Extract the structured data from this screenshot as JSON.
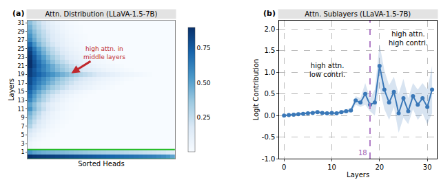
{
  "chart_data": [
    {
      "type": "heatmap",
      "panel": "(a)",
      "title": "Attn. Distribution (LLaVA-1.5-7B)",
      "x_label": "Sorted Heads",
      "y_label": "Layers",
      "tick_labels": "y",
      "y": [
        0,
        1,
        2,
        3,
        4,
        5,
        6,
        7,
        8,
        9,
        10,
        11,
        12,
        13,
        14,
        15,
        16,
        17,
        18,
        19,
        20,
        21,
        22,
        23,
        24,
        25,
        26,
        27,
        28,
        29,
        30,
        31
      ],
      "ylim": [
        -0.5,
        31.5
      ],
      "yticks": [
        1,
        3,
        5,
        7,
        9,
        11,
        13,
        15,
        17,
        19,
        21,
        23,
        25,
        27,
        29,
        31
      ],
      "colorbar": {
        "range": [
          0,
          0.9
        ],
        "ticks": [
          0.25,
          {
            "value": 0.5,
            "label": "0.50"
          },
          0.75
        ]
      },
      "annotations": [
        "high attn. in\nmiddle layers"
      ],
      "cells": [
        [
          0.9,
          0.88,
          0.87,
          0.86,
          0.85,
          0.84,
          0.83,
          0.82,
          0.81,
          0.8,
          0.79,
          0.78,
          0.77,
          0.76,
          0.75,
          0.74,
          0.73,
          0.72,
          0.71,
          0.7,
          0.69,
          0.68,
          0.67,
          0.66,
          0.65,
          0.64,
          0.63,
          0.62,
          0.6,
          0.58,
          0.55,
          0.5
        ],
        [
          0.55,
          0.5,
          0.48,
          0.46,
          0.45,
          0.44,
          0.43,
          0.42,
          0.41,
          0.4,
          0.39,
          0.38,
          0.37,
          0.36,
          0.35,
          0.34,
          0.33,
          0.32,
          0.31,
          0.3,
          0.29,
          0.28,
          0.27,
          0.26,
          0.25,
          0.24,
          0.23,
          0.22,
          0.21,
          0.2,
          0.18,
          0.15
        ],
        [
          0.05,
          0.03,
          0.02,
          0.01,
          0.01,
          0,
          0,
          0,
          0,
          0,
          0,
          0,
          0,
          0,
          0,
          0,
          0,
          0,
          0,
          0,
          0,
          0,
          0,
          0,
          0,
          0,
          0,
          0,
          0,
          0,
          0,
          0
        ],
        [
          0.06,
          0.03,
          0.02,
          0.01,
          0.01,
          0,
          0,
          0,
          0,
          0,
          0,
          0,
          0,
          0,
          0,
          0,
          0,
          0,
          0,
          0,
          0,
          0,
          0,
          0,
          0,
          0,
          0,
          0,
          0,
          0,
          0,
          0
        ],
        [
          0.1,
          0.06,
          0.04,
          0.02,
          0.01,
          0,
          0,
          0,
          0,
          0,
          0,
          0,
          0,
          0,
          0,
          0,
          0,
          0,
          0,
          0,
          0,
          0,
          0,
          0,
          0,
          0,
          0,
          0,
          0,
          0,
          0,
          0
        ],
        [
          0.15,
          0.1,
          0.06,
          0.04,
          0.02,
          0.01,
          0,
          0,
          0,
          0,
          0,
          0,
          0,
          0,
          0,
          0,
          0,
          0,
          0,
          0,
          0,
          0,
          0,
          0,
          0,
          0,
          0,
          0,
          0,
          0,
          0,
          0
        ],
        [
          0.2,
          0.15,
          0.1,
          0.06,
          0.04,
          0.02,
          0.01,
          0,
          0,
          0,
          0,
          0,
          0,
          0,
          0,
          0,
          0,
          0,
          0,
          0,
          0,
          0,
          0,
          0,
          0,
          0,
          0,
          0,
          0,
          0,
          0,
          0
        ],
        [
          0.3,
          0.2,
          0.14,
          0.1,
          0.06,
          0.04,
          0.02,
          0.01,
          0,
          0,
          0,
          0,
          0,
          0,
          0,
          0,
          0,
          0,
          0,
          0,
          0,
          0,
          0,
          0,
          0,
          0,
          0,
          0,
          0,
          0,
          0,
          0
        ],
        [
          0.35,
          0.25,
          0.18,
          0.12,
          0.08,
          0.05,
          0.03,
          0.02,
          0.01,
          0,
          0,
          0,
          0,
          0,
          0,
          0,
          0,
          0,
          0,
          0,
          0,
          0,
          0,
          0,
          0,
          0,
          0,
          0,
          0,
          0,
          0,
          0
        ],
        [
          0.4,
          0.3,
          0.22,
          0.15,
          0.1,
          0.07,
          0.05,
          0.03,
          0.02,
          0.01,
          0,
          0,
          0,
          0,
          0,
          0,
          0,
          0,
          0,
          0,
          0,
          0,
          0,
          0,
          0,
          0,
          0,
          0,
          0,
          0,
          0,
          0
        ],
        [
          0.45,
          0.35,
          0.26,
          0.18,
          0.12,
          0.08,
          0.05,
          0.03,
          0.02,
          0.01,
          0,
          0,
          0,
          0,
          0,
          0,
          0,
          0,
          0,
          0,
          0,
          0,
          0,
          0,
          0,
          0,
          0,
          0,
          0,
          0,
          0,
          0
        ],
        [
          0.55,
          0.42,
          0.32,
          0.24,
          0.17,
          0.12,
          0.08,
          0.05,
          0.03,
          0.02,
          0.01,
          0,
          0,
          0,
          0,
          0,
          0,
          0,
          0,
          0,
          0,
          0,
          0,
          0,
          0,
          0,
          0,
          0,
          0,
          0,
          0,
          0
        ],
        [
          0.5,
          0.4,
          0.3,
          0.22,
          0.16,
          0.11,
          0.08,
          0.05,
          0.03,
          0.02,
          0.01,
          0,
          0,
          0,
          0,
          0,
          0,
          0,
          0,
          0,
          0,
          0,
          0,
          0,
          0,
          0,
          0,
          0,
          0,
          0,
          0,
          0
        ],
        [
          0.6,
          0.48,
          0.38,
          0.3,
          0.23,
          0.17,
          0.12,
          0.08,
          0.05,
          0.03,
          0.02,
          0.01,
          0,
          0,
          0,
          0,
          0,
          0,
          0,
          0,
          0,
          0,
          0,
          0,
          0,
          0,
          0,
          0,
          0,
          0,
          0,
          0
        ],
        [
          0.65,
          0.52,
          0.42,
          0.33,
          0.26,
          0.2,
          0.15,
          0.11,
          0.08,
          0.05,
          0.03,
          0.02,
          0.01,
          0,
          0,
          0,
          0,
          0,
          0,
          0,
          0,
          0,
          0,
          0,
          0,
          0,
          0,
          0,
          0,
          0,
          0,
          0
        ],
        [
          0.7,
          0.58,
          0.48,
          0.4,
          0.33,
          0.27,
          0.22,
          0.17,
          0.13,
          0.1,
          0.07,
          0.05,
          0.03,
          0.02,
          0.01,
          0,
          0,
          0,
          0,
          0,
          0,
          0,
          0,
          0,
          0,
          0,
          0,
          0,
          0,
          0,
          0,
          0
        ],
        [
          0.75,
          0.65,
          0.56,
          0.48,
          0.41,
          0.35,
          0.3,
          0.25,
          0.21,
          0.17,
          0.14,
          0.11,
          0.09,
          0.07,
          0.05,
          0.04,
          0.03,
          0.02,
          0.01,
          0,
          0,
          0,
          0,
          0,
          0,
          0,
          0,
          0,
          0,
          0,
          0,
          0
        ],
        [
          0.8,
          0.7,
          0.62,
          0.55,
          0.48,
          0.42,
          0.36,
          0.31,
          0.26,
          0.22,
          0.18,
          0.15,
          0.12,
          0.1,
          0.08,
          0.06,
          0.05,
          0.04,
          0.03,
          0.02,
          0.01,
          0,
          0,
          0,
          0,
          0,
          0,
          0,
          0,
          0,
          0,
          0
        ],
        [
          0.8,
          0.72,
          0.65,
          0.58,
          0.52,
          0.46,
          0.4,
          0.35,
          0.3,
          0.26,
          0.22,
          0.19,
          0.16,
          0.13,
          0.11,
          0.09,
          0.07,
          0.06,
          0.05,
          0.04,
          0.03,
          0.02,
          0.01,
          0,
          0,
          0,
          0,
          0,
          0,
          0,
          0,
          0
        ],
        [
          0.85,
          0.78,
          0.72,
          0.66,
          0.6,
          0.55,
          0.5,
          0.45,
          0.41,
          0.37,
          0.33,
          0.29,
          0.26,
          0.23,
          0.2,
          0.17,
          0.15,
          0.13,
          0.11,
          0.09,
          0.07,
          0.06,
          0.05,
          0.04,
          0.03,
          0.02,
          0.01,
          0,
          0,
          0,
          0,
          0
        ],
        [
          0.85,
          0.76,
          0.68,
          0.61,
          0.54,
          0.48,
          0.42,
          0.37,
          0.32,
          0.28,
          0.24,
          0.2,
          0.17,
          0.14,
          0.12,
          0.1,
          0.08,
          0.06,
          0.05,
          0.04,
          0.03,
          0.02,
          0.01,
          0,
          0,
          0,
          0,
          0,
          0,
          0,
          0,
          0
        ],
        [
          0.9,
          0.8,
          0.7,
          0.62,
          0.54,
          0.47,
          0.4,
          0.34,
          0.29,
          0.24,
          0.2,
          0.16,
          0.13,
          0.1,
          0.08,
          0.06,
          0.05,
          0.04,
          0.03,
          0.02,
          0.01,
          0,
          0,
          0,
          0,
          0,
          0,
          0,
          0,
          0,
          0,
          0
        ],
        [
          0.9,
          0.78,
          0.67,
          0.57,
          0.48,
          0.4,
          0.33,
          0.27,
          0.22,
          0.18,
          0.14,
          0.11,
          0.08,
          0.06,
          0.05,
          0.04,
          0.03,
          0.02,
          0.01,
          0,
          0,
          0,
          0,
          0,
          0,
          0,
          0,
          0,
          0,
          0,
          0,
          0
        ],
        [
          0.88,
          0.75,
          0.63,
          0.52,
          0.43,
          0.35,
          0.28,
          0.22,
          0.17,
          0.13,
          0.1,
          0.08,
          0.06,
          0.04,
          0.03,
          0.02,
          0.01,
          0,
          0,
          0,
          0,
          0,
          0,
          0,
          0,
          0,
          0,
          0,
          0,
          0,
          0,
          0
        ],
        [
          0.85,
          0.7,
          0.57,
          0.46,
          0.37,
          0.29,
          0.23,
          0.18,
          0.14,
          0.1,
          0.08,
          0.06,
          0.04,
          0.03,
          0.02,
          0.01,
          0,
          0,
          0,
          0,
          0,
          0,
          0,
          0,
          0,
          0,
          0,
          0,
          0,
          0,
          0,
          0
        ],
        [
          0.8,
          0.65,
          0.52,
          0.42,
          0.33,
          0.26,
          0.2,
          0.15,
          0.11,
          0.08,
          0.06,
          0.04,
          0.03,
          0.02,
          0.01,
          0,
          0,
          0,
          0,
          0,
          0,
          0,
          0,
          0,
          0,
          0,
          0,
          0,
          0,
          0,
          0,
          0
        ],
        [
          0.7,
          0.55,
          0.43,
          0.34,
          0.26,
          0.2,
          0.15,
          0.11,
          0.08,
          0.06,
          0.04,
          0.03,
          0.02,
          0.01,
          0,
          0,
          0,
          0,
          0,
          0,
          0,
          0,
          0,
          0,
          0,
          0,
          0,
          0,
          0,
          0,
          0,
          0
        ],
        [
          0.6,
          0.48,
          0.38,
          0.3,
          0.23,
          0.17,
          0.13,
          0.1,
          0.07,
          0.05,
          0.03,
          0.02,
          0.01,
          0,
          0,
          0,
          0,
          0,
          0,
          0,
          0,
          0,
          0,
          0,
          0,
          0,
          0,
          0,
          0,
          0,
          0,
          0
        ],
        [
          0.55,
          0.44,
          0.35,
          0.27,
          0.21,
          0.16,
          0.12,
          0.09,
          0.06,
          0.04,
          0.03,
          0.02,
          0.01,
          0,
          0,
          0,
          0,
          0,
          0,
          0,
          0,
          0,
          0,
          0,
          0,
          0,
          0,
          0,
          0,
          0,
          0,
          0
        ],
        [
          0.5,
          0.4,
          0.32,
          0.25,
          0.19,
          0.14,
          0.1,
          0.07,
          0.05,
          0.03,
          0.02,
          0.01,
          0,
          0,
          0,
          0,
          0,
          0,
          0,
          0,
          0,
          0,
          0,
          0,
          0,
          0,
          0,
          0,
          0,
          0,
          0,
          0
        ],
        [
          0.45,
          0.36,
          0.28,
          0.21,
          0.16,
          0.12,
          0.09,
          0.06,
          0.04,
          0.03,
          0.02,
          0.01,
          0,
          0,
          0,
          0,
          0,
          0,
          0,
          0,
          0,
          0,
          0,
          0,
          0,
          0,
          0,
          0,
          0,
          0,
          0,
          0
        ],
        [
          0.4,
          0.32,
          0.25,
          0.19,
          0.14,
          0.1,
          0.07,
          0.05,
          0.03,
          0.02,
          0.01,
          0,
          0,
          0,
          0,
          0,
          0,
          0,
          0,
          0,
          0,
          0,
          0,
          0,
          0,
          0,
          0,
          0,
          0,
          0,
          0,
          0
        ]
      ]
    },
    {
      "type": "line",
      "panel": "(b)",
      "title": "Attn. Sublayers (LLaVA-1.5-7B)",
      "x_label": "Layers",
      "y_label": "Logit Contribution",
      "x": [
        0,
        1,
        2,
        3,
        4,
        5,
        6,
        7,
        8,
        9,
        10,
        11,
        12,
        13,
        14,
        15,
        16,
        17,
        18,
        19,
        20,
        21,
        22,
        23,
        24,
        25,
        26,
        27,
        28,
        29,
        30,
        31
      ],
      "values": [
        0.0,
        0.01,
        0.02,
        0.03,
        0.04,
        0.05,
        0.06,
        0.08,
        0.06,
        0.05,
        0.06,
        0.05,
        0.08,
        0.1,
        0.12,
        0.35,
        0.3,
        0.5,
        0.25,
        0.3,
        1.15,
        0.6,
        0.3,
        0.55,
        0.05,
        0.4,
        0.1,
        0.45,
        0.25,
        0.4,
        0.2,
        0.6
      ],
      "error": [
        0.02,
        0.02,
        0.02,
        0.02,
        0.03,
        0.03,
        0.03,
        0.03,
        0.03,
        0.03,
        0.03,
        0.03,
        0.04,
        0.05,
        0.05,
        0.1,
        0.1,
        0.25,
        0.15,
        0.3,
        0.5,
        0.45,
        0.4,
        0.35,
        0.45,
        0.45,
        0.3,
        0.3,
        0.35,
        0.35,
        0.4,
        0.55
      ],
      "color": "#3a78b8",
      "marker": "circle",
      "line_style": "solid",
      "xlim": [
        -1,
        32
      ],
      "ylim": [
        -1,
        2.2
      ],
      "xticks": [
        0,
        10,
        20,
        30
      ],
      "yticks": [
        {
          "value": -1,
          "label": "-1.0"
        },
        {
          "value": -0.5,
          "label": "-0.5"
        },
        {
          "value": 0,
          "label": "0.0"
        },
        {
          "value": 0.5,
          "label": "0.5"
        },
        {
          "value": 1,
          "label": "1.0"
        },
        {
          "value": 1.5,
          "label": "1.5"
        },
        {
          "value": 2,
          "label": "2.0"
        }
      ],
      "grid": true,
      "vline": 18,
      "annotations": [
        "high attn.\nlow contri.",
        "high attn.\nhigh contri."
      ]
    }
  ]
}
